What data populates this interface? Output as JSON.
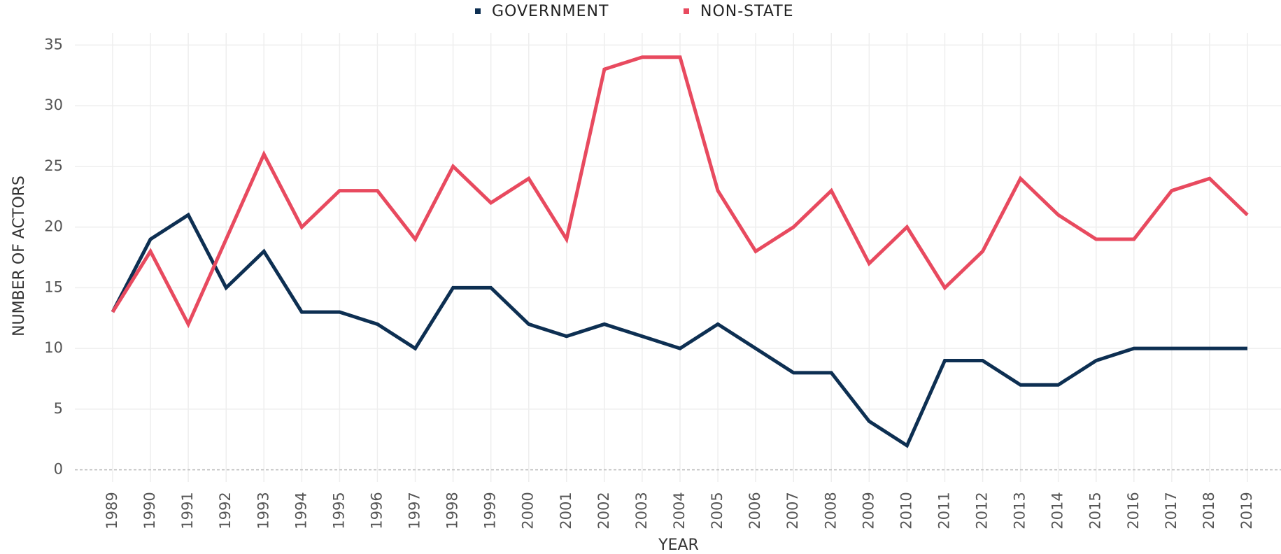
{
  "chart_data": {
    "type": "line",
    "x_label": "YEAR",
    "y_label": "NUMBER OF ACTORS",
    "categories": [
      "1989",
      "1990",
      "1991",
      "1992",
      "1993",
      "1994",
      "1995",
      "1996",
      "1997",
      "1998",
      "1999",
      "2000",
      "2001",
      "2002",
      "2003",
      "2004",
      "2005",
      "2006",
      "2007",
      "2008",
      "2009",
      "2010",
      "2011",
      "2012",
      "2013",
      "2014",
      "2015",
      "2016",
      "2017",
      "2018",
      "2019"
    ],
    "series": [
      {
        "name": "GOVERNMENT",
        "color": "#0d2f52",
        "values": [
          13,
          19,
          21,
          15,
          18,
          13,
          13,
          12,
          10,
          15,
          15,
          12,
          11,
          12,
          11,
          10,
          12,
          10,
          8,
          8,
          4,
          2,
          9,
          9,
          7,
          7,
          9,
          10,
          10,
          10,
          10
        ]
      },
      {
        "name": "NON-STATE",
        "color": "#e84a5f",
        "values": [
          13,
          18,
          12,
          19,
          26,
          20,
          23,
          23,
          19,
          25,
          22,
          24,
          19,
          33,
          34,
          34,
          23,
          18,
          20,
          23,
          17,
          20,
          15,
          18,
          24,
          21,
          19,
          19,
          23,
          24,
          21
        ]
      }
    ],
    "ylim": [
      -1,
      36
    ],
    "yticks": [
      0,
      5,
      10,
      15,
      20,
      25,
      30,
      35
    ],
    "grid": true,
    "legend": "top"
  }
}
